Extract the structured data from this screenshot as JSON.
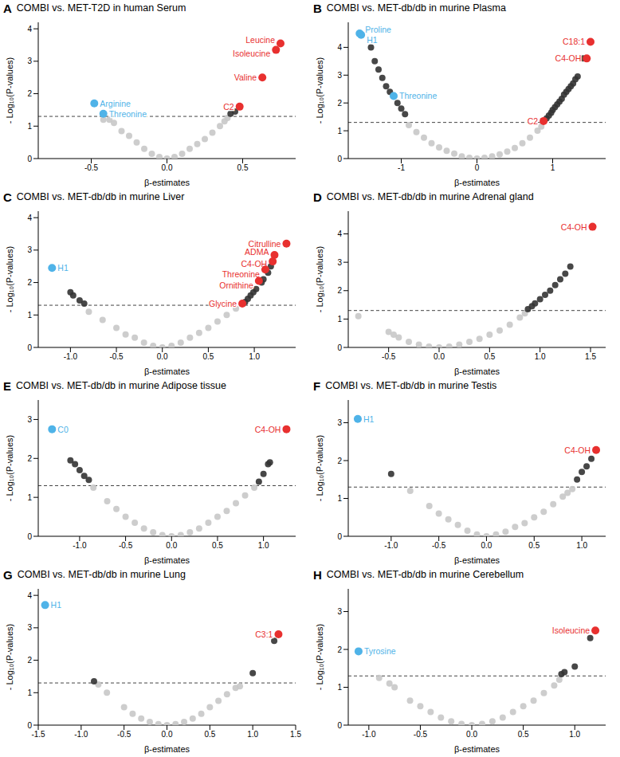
{
  "chart_data": [
    {
      "panel": "A",
      "type": "scatter",
      "title": "COMBI vs. MET-T2D in human Serum",
      "xlabel": "β-estimates",
      "ylabel": "- Log₁₀(P-values)",
      "xlim": [
        -0.85,
        0.85
      ],
      "ylim": [
        0,
        4.2
      ],
      "xticks": [
        -0.5,
        {
          "value": 0,
          "label": "0.0"
        },
        0.5
      ],
      "yticks": [
        0,
        1,
        2,
        3,
        4
      ],
      "hline": 1.3,
      "series": [
        {
          "color": "#c8c8c8",
          "x": [
            -0.42,
            -0.38,
            -0.35,
            -0.3,
            -0.25,
            -0.2,
            -0.15,
            -0.1,
            -0.05,
            0,
            0.05,
            0.1,
            0.15,
            0.2,
            0.25,
            0.3,
            0.35,
            0.38,
            0.4
          ],
          "values": [
            1.2,
            1.2,
            1.1,
            0.85,
            0.7,
            0.5,
            0.3,
            0.15,
            0.05,
            0,
            0.05,
            0.15,
            0.3,
            0.45,
            0.6,
            0.8,
            1.0,
            1.15,
            1.25
          ]
        },
        {
          "color": "#333333",
          "x": [
            0.42,
            0.45
          ],
          "values": [
            1.38,
            1.45
          ]
        },
        {
          "color": "#e8302f",
          "x": [
            0.75,
            0.72,
            0.63,
            0.48
          ],
          "values": [
            3.55,
            3.35,
            2.5,
            1.6
          ],
          "point_labels": [
            "Leucine",
            "Isoleucine",
            "Valine",
            "C2"
          ]
        },
        {
          "color": "#4fb3e8",
          "x": [
            -0.48,
            -0.42
          ],
          "values": [
            1.7,
            1.38
          ],
          "point_labels": [
            "Arginine",
            "Threonine"
          ]
        }
      ]
    },
    {
      "panel": "B",
      "type": "scatter",
      "title": "COMBI vs. MET-db/db in murine Plasma",
      "xlabel": "β-estimates",
      "ylabel": "- Log₁₀(P-values)",
      "xlim": [
        -1.7,
        1.7
      ],
      "ylim": [
        0,
        4.9
      ],
      "xticks": [
        -1,
        0,
        1
      ],
      "yticks": [
        0,
        1,
        2,
        3,
        4
      ],
      "hline": 1.3,
      "series": [
        {
          "color": "#c8c8c8",
          "x": [
            -0.9,
            -0.8,
            -0.7,
            -0.6,
            -0.5,
            -0.4,
            -0.3,
            -0.2,
            -0.1,
            0,
            0.1,
            0.2,
            0.3,
            0.4,
            0.5,
            0.6,
            0.7,
            0.8,
            0.85
          ],
          "values": [
            1.2,
            0.95,
            0.75,
            0.55,
            0.4,
            0.28,
            0.18,
            0.08,
            0.03,
            0,
            0.03,
            0.08,
            0.15,
            0.25,
            0.38,
            0.55,
            0.75,
            1.0,
            1.15
          ]
        },
        {
          "color": "#333333",
          "x": [
            -1.4,
            -1.35,
            -1.3,
            -1.25,
            -1.2,
            -1.15,
            -1.05,
            -1.0,
            -0.95,
            0.92,
            0.95,
            0.98,
            1.0,
            1.03,
            1.06,
            1.09,
            1.12,
            1.15,
            1.18,
            1.21,
            1.24,
            1.27,
            1.3,
            1.33,
            1.4
          ],
          "values": [
            4.0,
            3.5,
            3.2,
            2.9,
            2.6,
            2.4,
            2.0,
            1.8,
            1.6,
            1.45,
            1.55,
            1.65,
            1.75,
            1.85,
            1.95,
            2.05,
            2.15,
            2.3,
            2.4,
            2.5,
            2.6,
            2.7,
            2.85,
            2.95,
            3.6
          ]
        },
        {
          "color": "#e8302f",
          "x": [
            1.5,
            1.45,
            0.88
          ],
          "values": [
            4.2,
            3.6,
            1.35
          ],
          "point_labels": [
            "C18:1",
            "C4-OH",
            "C2"
          ]
        },
        {
          "color": "#4fb3e8",
          "x": [
            -1.55,
            -1.53,
            -1.1
          ],
          "values": [
            4.5,
            4.45,
            2.25
          ],
          "point_labels": [
            "Proline",
            "H1",
            "Threonine"
          ]
        }
      ]
    },
    {
      "panel": "C",
      "type": "scatter",
      "title": "COMBI vs. MET-db/db in murine Liver",
      "xlabel": "β-estimates",
      "ylabel": "- Log₁₀(P-values)",
      "xlim": [
        -1.35,
        1.45
      ],
      "ylim": [
        0,
        4.2
      ],
      "xticks": [
        {
          "value": -1,
          "label": "-1.0"
        },
        -0.5,
        {
          "value": 0,
          "label": "0.0"
        },
        0.5,
        {
          "value": 1,
          "label": "1.0"
        }
      ],
      "yticks": [
        0,
        1,
        2,
        3,
        4
      ],
      "hline": 1.3,
      "series": [
        {
          "color": "#c8c8c8",
          "x": [
            -0.8,
            -0.65,
            -0.5,
            -0.4,
            -0.3,
            -0.2,
            -0.1,
            0,
            0.1,
            0.2,
            0.3,
            0.4,
            0.5,
            0.6,
            0.7,
            0.8
          ],
          "values": [
            1.1,
            0.85,
            0.6,
            0.4,
            0.3,
            0.15,
            0.05,
            0,
            0.05,
            0.15,
            0.3,
            0.45,
            0.6,
            0.8,
            1.0,
            1.2
          ]
        },
        {
          "color": "#333333",
          "x": [
            -1.0,
            -0.97,
            -0.9,
            -0.85,
            0.9,
            0.93,
            0.96,
            0.99,
            1.02,
            1.08,
            1.1,
            1.15,
            1.18
          ],
          "values": [
            1.7,
            1.6,
            1.45,
            1.35,
            1.4,
            1.5,
            1.6,
            1.7,
            1.8,
            2.0,
            2.1,
            2.3,
            2.5
          ]
        },
        {
          "color": "#e8302f",
          "x": [
            1.35,
            1.22,
            1.2,
            1.12,
            1.05,
            0.87
          ],
          "values": [
            3.2,
            2.85,
            2.65,
            2.4,
            2.05,
            1.35
          ],
          "point_labels": [
            "Citrulline",
            "ADMA",
            "C4-OH",
            "Threonine",
            "Ornithine",
            "Glycine"
          ]
        },
        {
          "color": "#4fb3e8",
          "x": [
            -1.2
          ],
          "values": [
            2.45
          ],
          "point_labels": [
            "H1"
          ]
        }
      ]
    },
    {
      "panel": "D",
      "type": "scatter",
      "title": "COMBI vs. MET-db/db in murine Adrenal gland",
      "xlabel": "β-estimates",
      "ylabel": "- Log₁₀(P-values)",
      "xlim": [
        -0.9,
        1.65
      ],
      "ylim": [
        0,
        4.8
      ],
      "xticks": [
        -0.5,
        {
          "value": 0,
          "label": "0.0"
        },
        0.5,
        {
          "value": 1,
          "label": "1.0"
        },
        1.5
      ],
      "yticks": [
        0,
        1,
        2,
        3,
        4
      ],
      "hline": 1.3,
      "series": [
        {
          "color": "#c8c8c8",
          "x": [
            -0.8,
            -0.5,
            -0.45,
            -0.4,
            -0.3,
            -0.2,
            -0.1,
            0,
            0.1,
            0.2,
            0.3,
            0.4,
            0.5,
            0.6,
            0.7,
            0.8,
            0.85
          ],
          "values": [
            1.1,
            0.55,
            0.45,
            0.35,
            0.2,
            0.1,
            0.03,
            0,
            0.03,
            0.1,
            0.2,
            0.3,
            0.45,
            0.6,
            0.8,
            1.05,
            1.2
          ]
        },
        {
          "color": "#333333",
          "x": [
            0.88,
            0.92,
            0.95,
            1.0,
            1.05,
            1.1,
            1.15,
            1.2,
            1.25,
            1.3
          ],
          "values": [
            1.35,
            1.45,
            1.55,
            1.7,
            1.85,
            2.0,
            2.2,
            2.4,
            2.6,
            2.85
          ]
        },
        {
          "color": "#e8302f",
          "x": [
            1.52
          ],
          "values": [
            4.25
          ],
          "point_labels": [
            "C4-OH"
          ]
        }
      ]
    },
    {
      "panel": "E",
      "type": "scatter",
      "title": "COMBI vs. MET-db/db in murine Adipose tissue",
      "xlabel": "β-estimates",
      "ylabel": "- Log₁₀(P-values)",
      "xlim": [
        -1.45,
        1.35
      ],
      "ylim": [
        0,
        3.5
      ],
      "xticks": [
        {
          "value": -1,
          "label": "-1.0"
        },
        -0.5,
        {
          "value": 0,
          "label": "0.0"
        },
        0.5,
        {
          "value": 1,
          "label": "1.0"
        }
      ],
      "yticks": [
        0,
        1,
        2,
        3
      ],
      "hline": 1.3,
      "series": [
        {
          "color": "#c8c8c8",
          "x": [
            -0.85,
            -0.7,
            -0.6,
            -0.5,
            -0.4,
            -0.3,
            -0.2,
            -0.1,
            0,
            0.1,
            0.2,
            0.3,
            0.4,
            0.5,
            0.6,
            0.7,
            0.8,
            0.9
          ],
          "values": [
            1.25,
            0.9,
            0.7,
            0.5,
            0.35,
            0.2,
            0.1,
            0.03,
            0,
            0.03,
            0.1,
            0.2,
            0.35,
            0.5,
            0.65,
            0.85,
            1.05,
            1.25
          ]
        },
        {
          "color": "#333333",
          "x": [
            -1.1,
            -1.05,
            -1.0,
            -0.95,
            -0.9,
            0.95,
            1.0,
            1.05,
            1.07
          ],
          "values": [
            1.95,
            1.85,
            1.7,
            1.55,
            1.45,
            1.4,
            1.6,
            1.85,
            1.9
          ]
        },
        {
          "color": "#e8302f",
          "x": [
            1.25
          ],
          "values": [
            2.75
          ],
          "point_labels": [
            "C4-OH"
          ]
        },
        {
          "color": "#4fb3e8",
          "x": [
            -1.3
          ],
          "values": [
            2.75
          ],
          "point_labels": [
            "C0"
          ]
        }
      ]
    },
    {
      "panel": "F",
      "type": "scatter",
      "title": "COMBI vs. MET-db/db in murine Testis",
      "xlabel": "β-estimates",
      "ylabel": "- Log₁₀(P-values)",
      "xlim": [
        -1.45,
        1.25
      ],
      "ylim": [
        0,
        3.6
      ],
      "xticks": [
        {
          "value": -1,
          "label": "-1.0"
        },
        -0.5,
        {
          "value": 0,
          "label": "0.0"
        },
        0.5,
        {
          "value": 1,
          "label": "1.0"
        }
      ],
      "yticks": [
        0,
        1,
        2,
        3
      ],
      "hline": 1.3,
      "series": [
        {
          "color": "#c8c8c8",
          "x": [
            -0.8,
            -0.6,
            -0.5,
            -0.4,
            -0.3,
            -0.2,
            -0.1,
            0,
            0.1,
            0.2,
            0.3,
            0.4,
            0.5,
            0.6,
            0.7,
            0.8,
            0.85,
            0.9
          ],
          "values": [
            1.2,
            0.8,
            0.6,
            0.45,
            0.3,
            0.15,
            0.05,
            0,
            0.05,
            0.12,
            0.25,
            0.35,
            0.5,
            0.65,
            0.85,
            1.05,
            1.15,
            1.25
          ]
        },
        {
          "color": "#333333",
          "x": [
            -1.0,
            0.95,
            1.0,
            1.05,
            1.1
          ],
          "values": [
            1.65,
            1.5,
            1.7,
            1.85,
            2.05
          ]
        },
        {
          "color": "#e8302f",
          "x": [
            1.15
          ],
          "values": [
            2.28
          ],
          "point_labels": [
            "C4-OH"
          ]
        },
        {
          "color": "#4fb3e8",
          "x": [
            -1.35
          ],
          "values": [
            3.1
          ],
          "point_labels": [
            "H1"
          ]
        }
      ]
    },
    {
      "panel": "G",
      "type": "scatter",
      "title": "COMBI vs. MET-db/db in murine Lung",
      "xlabel": "β-estimates",
      "ylabel": "- Log₁₀(P-values)",
      "xlim": [
        -1.5,
        1.5
      ],
      "ylim": [
        0,
        4.2
      ],
      "xticks": [
        -1.5,
        {
          "value": -1,
          "label": "-1.0"
        },
        -0.5,
        {
          "value": 0,
          "label": "0.0"
        },
        0.5,
        {
          "value": 1,
          "label": "1.0"
        },
        1.5
      ],
      "yticks": [
        0,
        1,
        2,
        3,
        4
      ],
      "hline": 1.3,
      "series": [
        {
          "color": "#c8c8c8",
          "x": [
            -0.8,
            -0.7,
            -0.5,
            -0.4,
            -0.3,
            -0.2,
            -0.1,
            0,
            0.1,
            0.2,
            0.3,
            0.4,
            0.5,
            0.6,
            0.7,
            0.8,
            0.85
          ],
          "values": [
            1.25,
            1.0,
            0.55,
            0.35,
            0.2,
            0.1,
            0.03,
            0,
            0.03,
            0.1,
            0.2,
            0.35,
            0.55,
            0.75,
            0.95,
            1.15,
            1.2
          ]
        },
        {
          "color": "#333333",
          "x": [
            -0.85,
            1.0,
            1.25
          ],
          "values": [
            1.35,
            1.6,
            2.6
          ]
        },
        {
          "color": "#e8302f",
          "x": [
            1.3
          ],
          "values": [
            2.8
          ],
          "point_labels": [
            "C3:1"
          ]
        },
        {
          "color": "#4fb3e8",
          "x": [
            -1.42
          ],
          "values": [
            3.7
          ],
          "point_labels": [
            "H1"
          ]
        }
      ]
    },
    {
      "panel": "H",
      "type": "scatter",
      "title": "COMBI vs. MET-db/db in murine Cerebellum",
      "xlabel": "β-estimates",
      "ylabel": "- Log₁₀(P-values)",
      "xlim": [
        -1.2,
        1.3
      ],
      "ylim": [
        0,
        3.6
      ],
      "xticks": [
        {
          "value": -1,
          "label": "-1.0"
        },
        -0.5,
        {
          "value": 0,
          "label": "0.0"
        },
        0.5,
        {
          "value": 1,
          "label": "1.0"
        }
      ],
      "yticks": [
        0,
        1,
        2,
        3
      ],
      "hline": 1.3,
      "series": [
        {
          "color": "#c8c8c8",
          "x": [
            -0.9,
            -0.8,
            -0.75,
            -0.6,
            -0.5,
            -0.4,
            -0.3,
            -0.2,
            -0.1,
            0,
            0.1,
            0.2,
            0.3,
            0.4,
            0.5,
            0.6,
            0.7,
            0.8,
            0.85
          ],
          "values": [
            1.25,
            1.1,
            1.0,
            0.65,
            0.5,
            0.35,
            0.2,
            0.1,
            0.03,
            0,
            0.03,
            0.1,
            0.2,
            0.35,
            0.5,
            0.65,
            0.85,
            1.05,
            1.2
          ]
        },
        {
          "color": "#333333",
          "x": [
            0.87,
            0.9,
            1.0,
            1.15
          ],
          "values": [
            1.35,
            1.4,
            1.55,
            2.3
          ]
        },
        {
          "color": "#e8302f",
          "x": [
            1.2
          ],
          "values": [
            2.5
          ],
          "point_labels": [
            "Isoleucine"
          ]
        },
        {
          "color": "#4fb3e8",
          "x": [
            -1.1
          ],
          "values": [
            1.95
          ],
          "point_labels": [
            "Tyrosine"
          ]
        }
      ]
    }
  ]
}
